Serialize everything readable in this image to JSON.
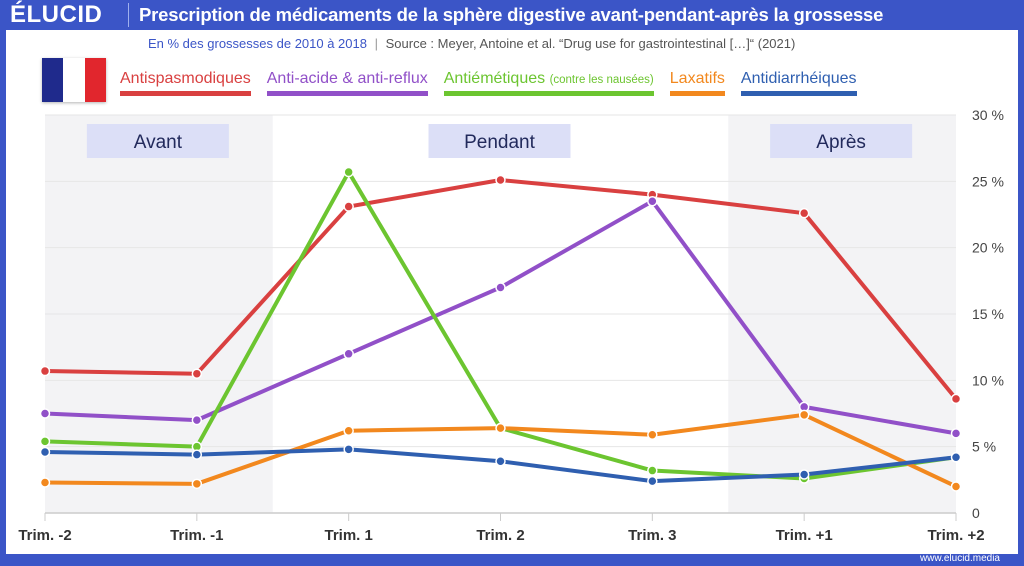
{
  "header": {
    "logo": "ÉLUCID",
    "title": "Prescription de médicaments de la sphère digestive avant-pendant-après la grossesse"
  },
  "subtitle": {
    "scope": "En % des grossesses de 2010 à 2018",
    "separator": "|",
    "source": "Source : Meyer, Antoine et al. “Drug use for gastrointestinal […]“ (2021)"
  },
  "flag": {
    "colors": [
      "#1f2a8c",
      "#ffffff",
      "#e1262d"
    ]
  },
  "footer": "www.elucid.media",
  "chart_data": {
    "type": "line",
    "title": "Prescription de médicaments de la sphère digestive avant-pendant-après la grossesse",
    "x": [
      "Trim. -2",
      "Trim. -1",
      "Trim. 1",
      "Trim. 2",
      "Trim. 3",
      "Trim. +1",
      "Trim. +2"
    ],
    "ylim": [
      0,
      30
    ],
    "yticks": [
      {
        "v": 0,
        "label": "0"
      },
      {
        "v": 5,
        "label": "5 %"
      },
      {
        "v": 10,
        "label": "10 %"
      },
      {
        "v": 15,
        "label": "15 %"
      },
      {
        "v": 20,
        "label": "20 %"
      },
      {
        "v": 25,
        "label": "25 %"
      },
      {
        "v": 30,
        "label": "30 %"
      }
    ],
    "grid": true,
    "legend": "top",
    "periods": [
      {
        "label": "Avant",
        "from": 0,
        "to": 1.5,
        "shaded": true
      },
      {
        "label": "Pendant",
        "from": 1.5,
        "to": 4.5,
        "shaded": false
      },
      {
        "label": "Après",
        "from": 4.5,
        "to": 6,
        "shaded": true
      }
    ],
    "series": [
      {
        "name": "Antispasmodiques",
        "note": "",
        "color": "#d94040",
        "values": [
          10.7,
          10.5,
          23.1,
          25.1,
          24.0,
          22.6,
          8.6
        ]
      },
      {
        "name": "Anti-acide & anti-reflux",
        "note": "",
        "color": "#9150c8",
        "values": [
          7.5,
          7.0,
          12.0,
          17.0,
          23.5,
          8.0,
          6.0
        ]
      },
      {
        "name": "Antiémétiques",
        "note": "(contre les nausées)",
        "color": "#6cc530",
        "values": [
          5.4,
          5.0,
          25.7,
          6.4,
          3.2,
          2.6,
          4.2
        ]
      },
      {
        "name": "Laxatifs",
        "note": "",
        "color": "#f2881e",
        "values": [
          2.3,
          2.2,
          6.2,
          6.4,
          5.9,
          7.4,
          2.0
        ]
      },
      {
        "name": "Antidiarrhéiques",
        "note": "",
        "color": "#2f5fb0",
        "values": [
          4.6,
          4.4,
          4.8,
          3.9,
          2.4,
          2.9,
          4.2
        ]
      }
    ]
  }
}
